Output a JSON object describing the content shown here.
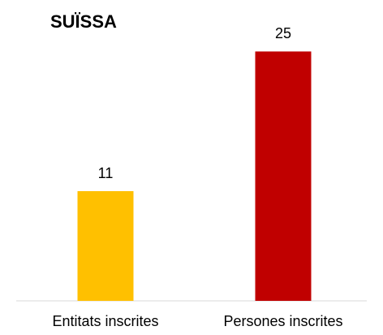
{
  "chart_data": {
    "type": "bar",
    "title": "SUÏSSA",
    "categories": [
      "Entitats inscrites",
      "Persones inscrites"
    ],
    "values": [
      11,
      25
    ],
    "colors": [
      "#ffc000",
      "#c00000"
    ],
    "ylim": [
      0,
      30
    ]
  }
}
